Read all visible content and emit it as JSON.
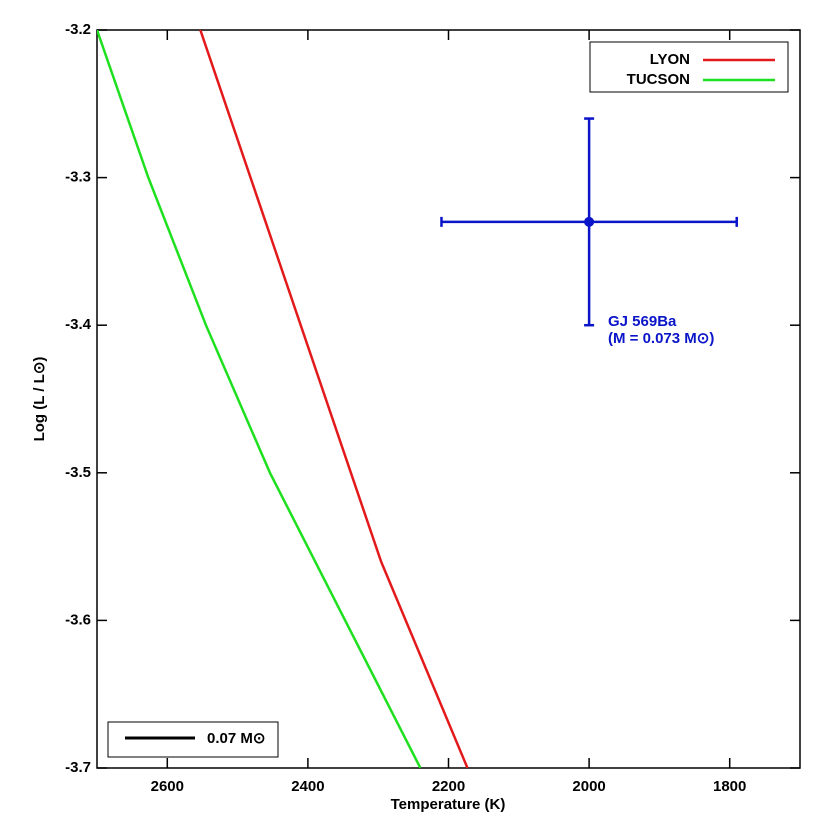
{
  "chart_data": {
    "type": "line",
    "x_label": "Temperature (K)",
    "y_label": "Log (L / L⊙)",
    "xlim": [
      2700,
      1700
    ],
    "xticks": [
      2600,
      2400,
      2200,
      2000,
      1800
    ],
    "ylim": [
      -3.7,
      -3.2
    ],
    "yticks": [
      -3.2,
      -3.3,
      -3.4,
      -3.5,
      -3.6,
      -3.7
    ],
    "legend": "upper right",
    "series": [
      {
        "name": "LYON",
        "color": "#e31a1c",
        "x": [
          2553,
          2296,
          2173
        ],
        "values": [
          -3.2,
          -3.56,
          -3.7
        ]
      },
      {
        "name": "TUCSON",
        "color": "#1ee01e",
        "x": [
          2700,
          2627,
          2545,
          2454,
          2347,
          2240
        ],
        "values": [
          -3.2,
          -3.3,
          -3.4,
          -3.5,
          -3.6,
          -3.7
        ]
      }
    ],
    "points": [
      {
        "x": 2000,
        "y": -3.33,
        "xerr": 210,
        "yerr": 0.07,
        "color": "#0a14c8"
      }
    ],
    "annotations": [
      "GJ 569Ba",
      "(M = 0.073 M⊙)",
      "0.07 M⊙"
    ]
  }
}
